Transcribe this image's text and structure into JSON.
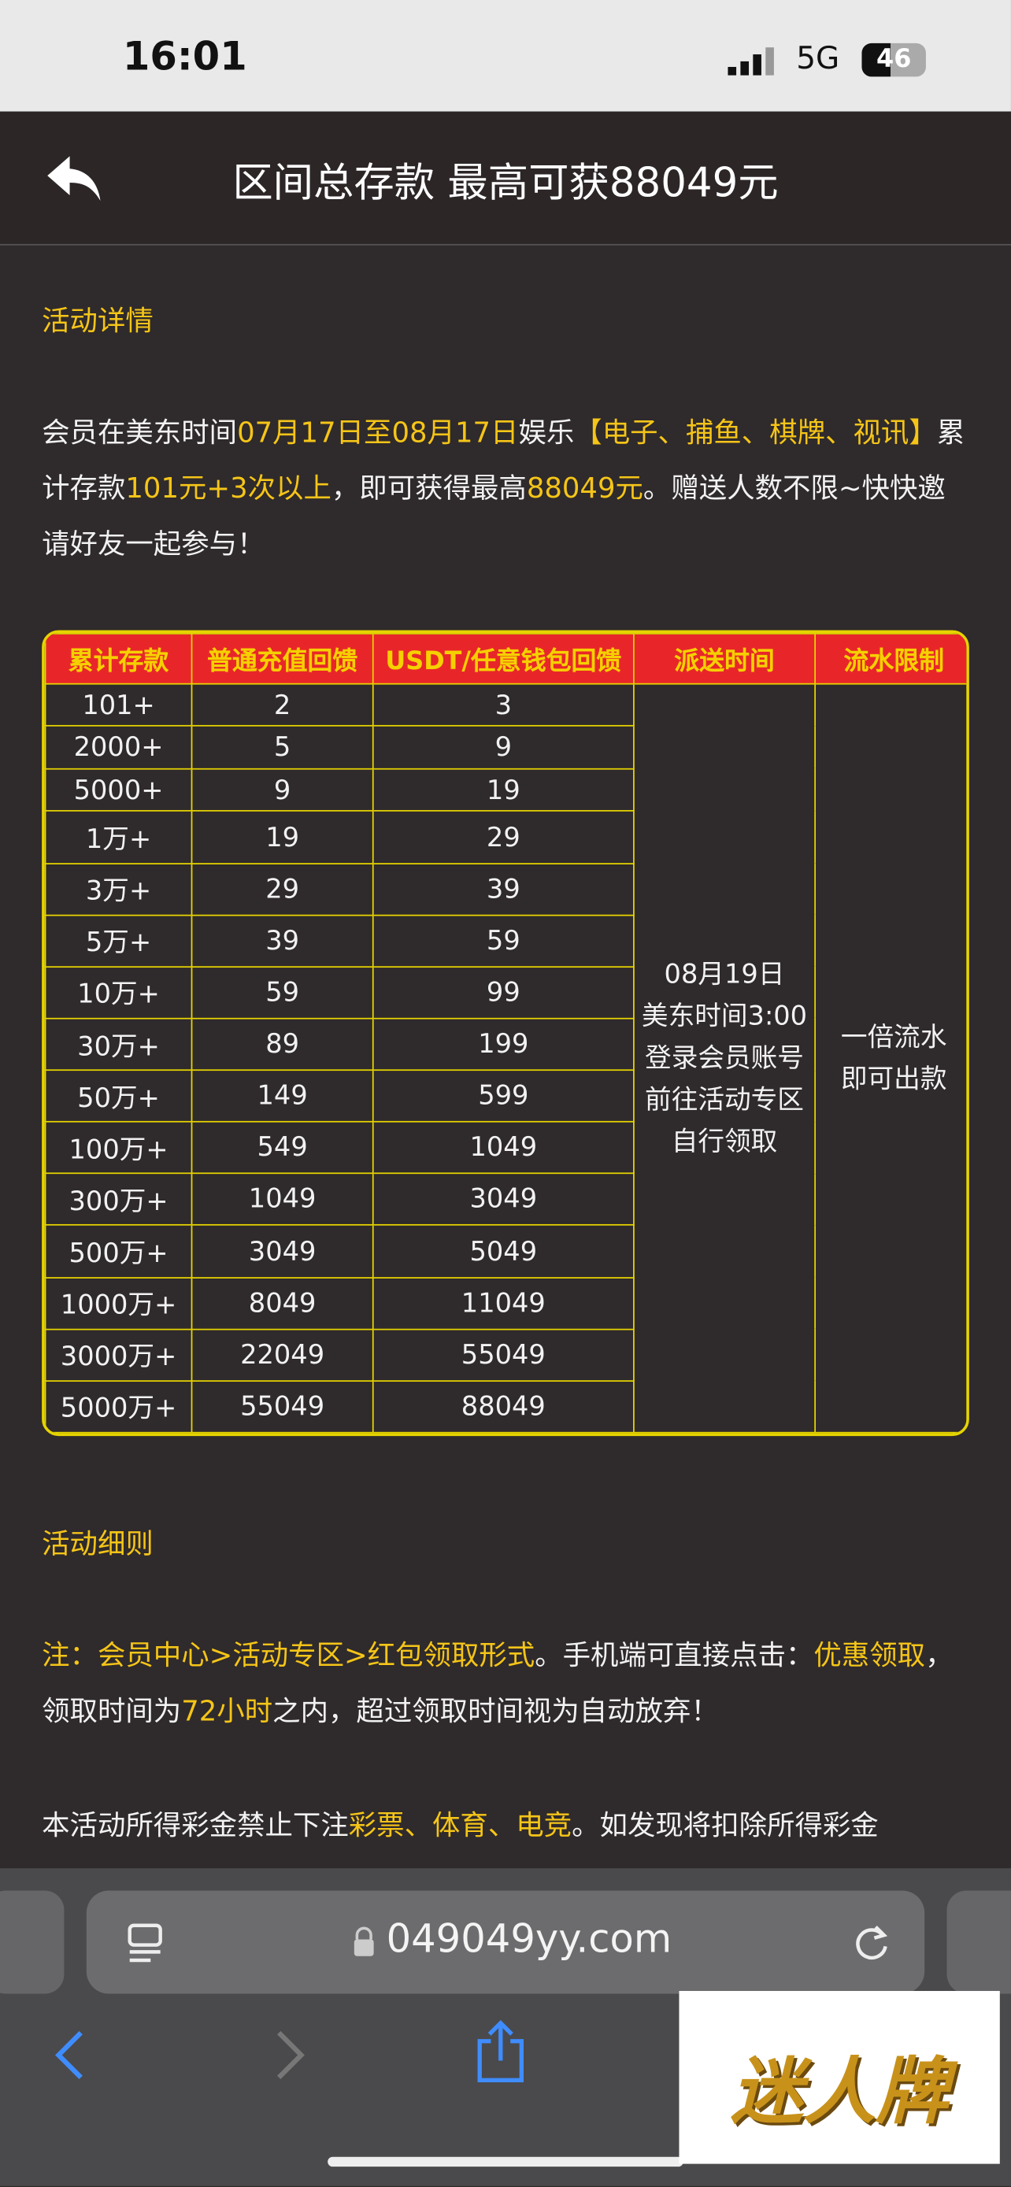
{
  "status_bar": {
    "time": "16:01",
    "network": "5G",
    "battery": "46"
  },
  "header": {
    "title": "区间总存款 最高可获88049元"
  },
  "section_1": {
    "title": "活动详情",
    "paragraph": [
      {
        "text": "会员在美东时间",
        "highlight": false
      },
      {
        "text": "07月17日至08月17日",
        "highlight": true
      },
      {
        "text": "娱乐",
        "highlight": false
      },
      {
        "text": "【电子、捕鱼、棋牌、视讯】",
        "highlight": true
      },
      {
        "text": "累计存款",
        "highlight": false
      },
      {
        "text": "101元+3次以上",
        "highlight": true
      },
      {
        "text": "，即可获得最高",
        "highlight": false
      },
      {
        "text": "88049元",
        "highlight": true
      },
      {
        "text": "。赠送人数不限~快快邀请好友一起参与！",
        "highlight": false
      }
    ]
  },
  "table": {
    "headers": [
      "累计存款",
      "普通充值回馈",
      "USDT/任意钱包回馈",
      "派送时间",
      "流水限制"
    ],
    "rows": [
      [
        "101+",
        2,
        3
      ],
      [
        "2000+",
        5,
        9
      ],
      [
        "5000+",
        9,
        19
      ],
      [
        "1万+",
        19,
        29
      ],
      [
        "3万+",
        29,
        39
      ],
      [
        "5万+",
        39,
        59
      ],
      [
        "10万+",
        59,
        99
      ],
      [
        "30万+",
        89,
        199
      ],
      [
        "50万+",
        149,
        599
      ],
      [
        "100万+",
        549,
        1049
      ],
      [
        "300万+",
        1049,
        3049
      ],
      [
        "500万+",
        3049,
        5049
      ],
      [
        "1000万+",
        8049,
        11049
      ],
      [
        "3000万+",
        22049,
        55049
      ],
      [
        "5000万+",
        55049,
        88049
      ]
    ],
    "dispatch_time": [
      "08月19日",
      "美东时间3:00",
      "登录会员账号",
      "前往活动专区",
      "自行领取"
    ],
    "wagering": [
      "一倍流水",
      "即可出款"
    ]
  },
  "section_2": {
    "title": "活动细则",
    "paragraph_1": [
      {
        "text": "注：会员中心>活动专区>红包领取形式",
        "highlight": true
      },
      {
        "text": "。手机端可直接点击：",
        "highlight": false
      },
      {
        "text": "优惠领取",
        "highlight": true
      },
      {
        "text": "，领取时间为",
        "highlight": false
      },
      {
        "text": "72小时",
        "highlight": true
      },
      {
        "text": "之内，超过领取时间视为自动放弃！",
        "highlight": false
      }
    ],
    "paragraph_2": [
      {
        "text": "本活动所得彩金禁止下注",
        "highlight": false
      },
      {
        "text": "彩票、体育、电竞",
        "highlight": true
      },
      {
        "text": "。如发现将扣除所得彩金",
        "highlight": false
      }
    ]
  },
  "browser": {
    "url": "049049yy.com"
  },
  "watermark": {
    "text": "迷人牌"
  }
}
